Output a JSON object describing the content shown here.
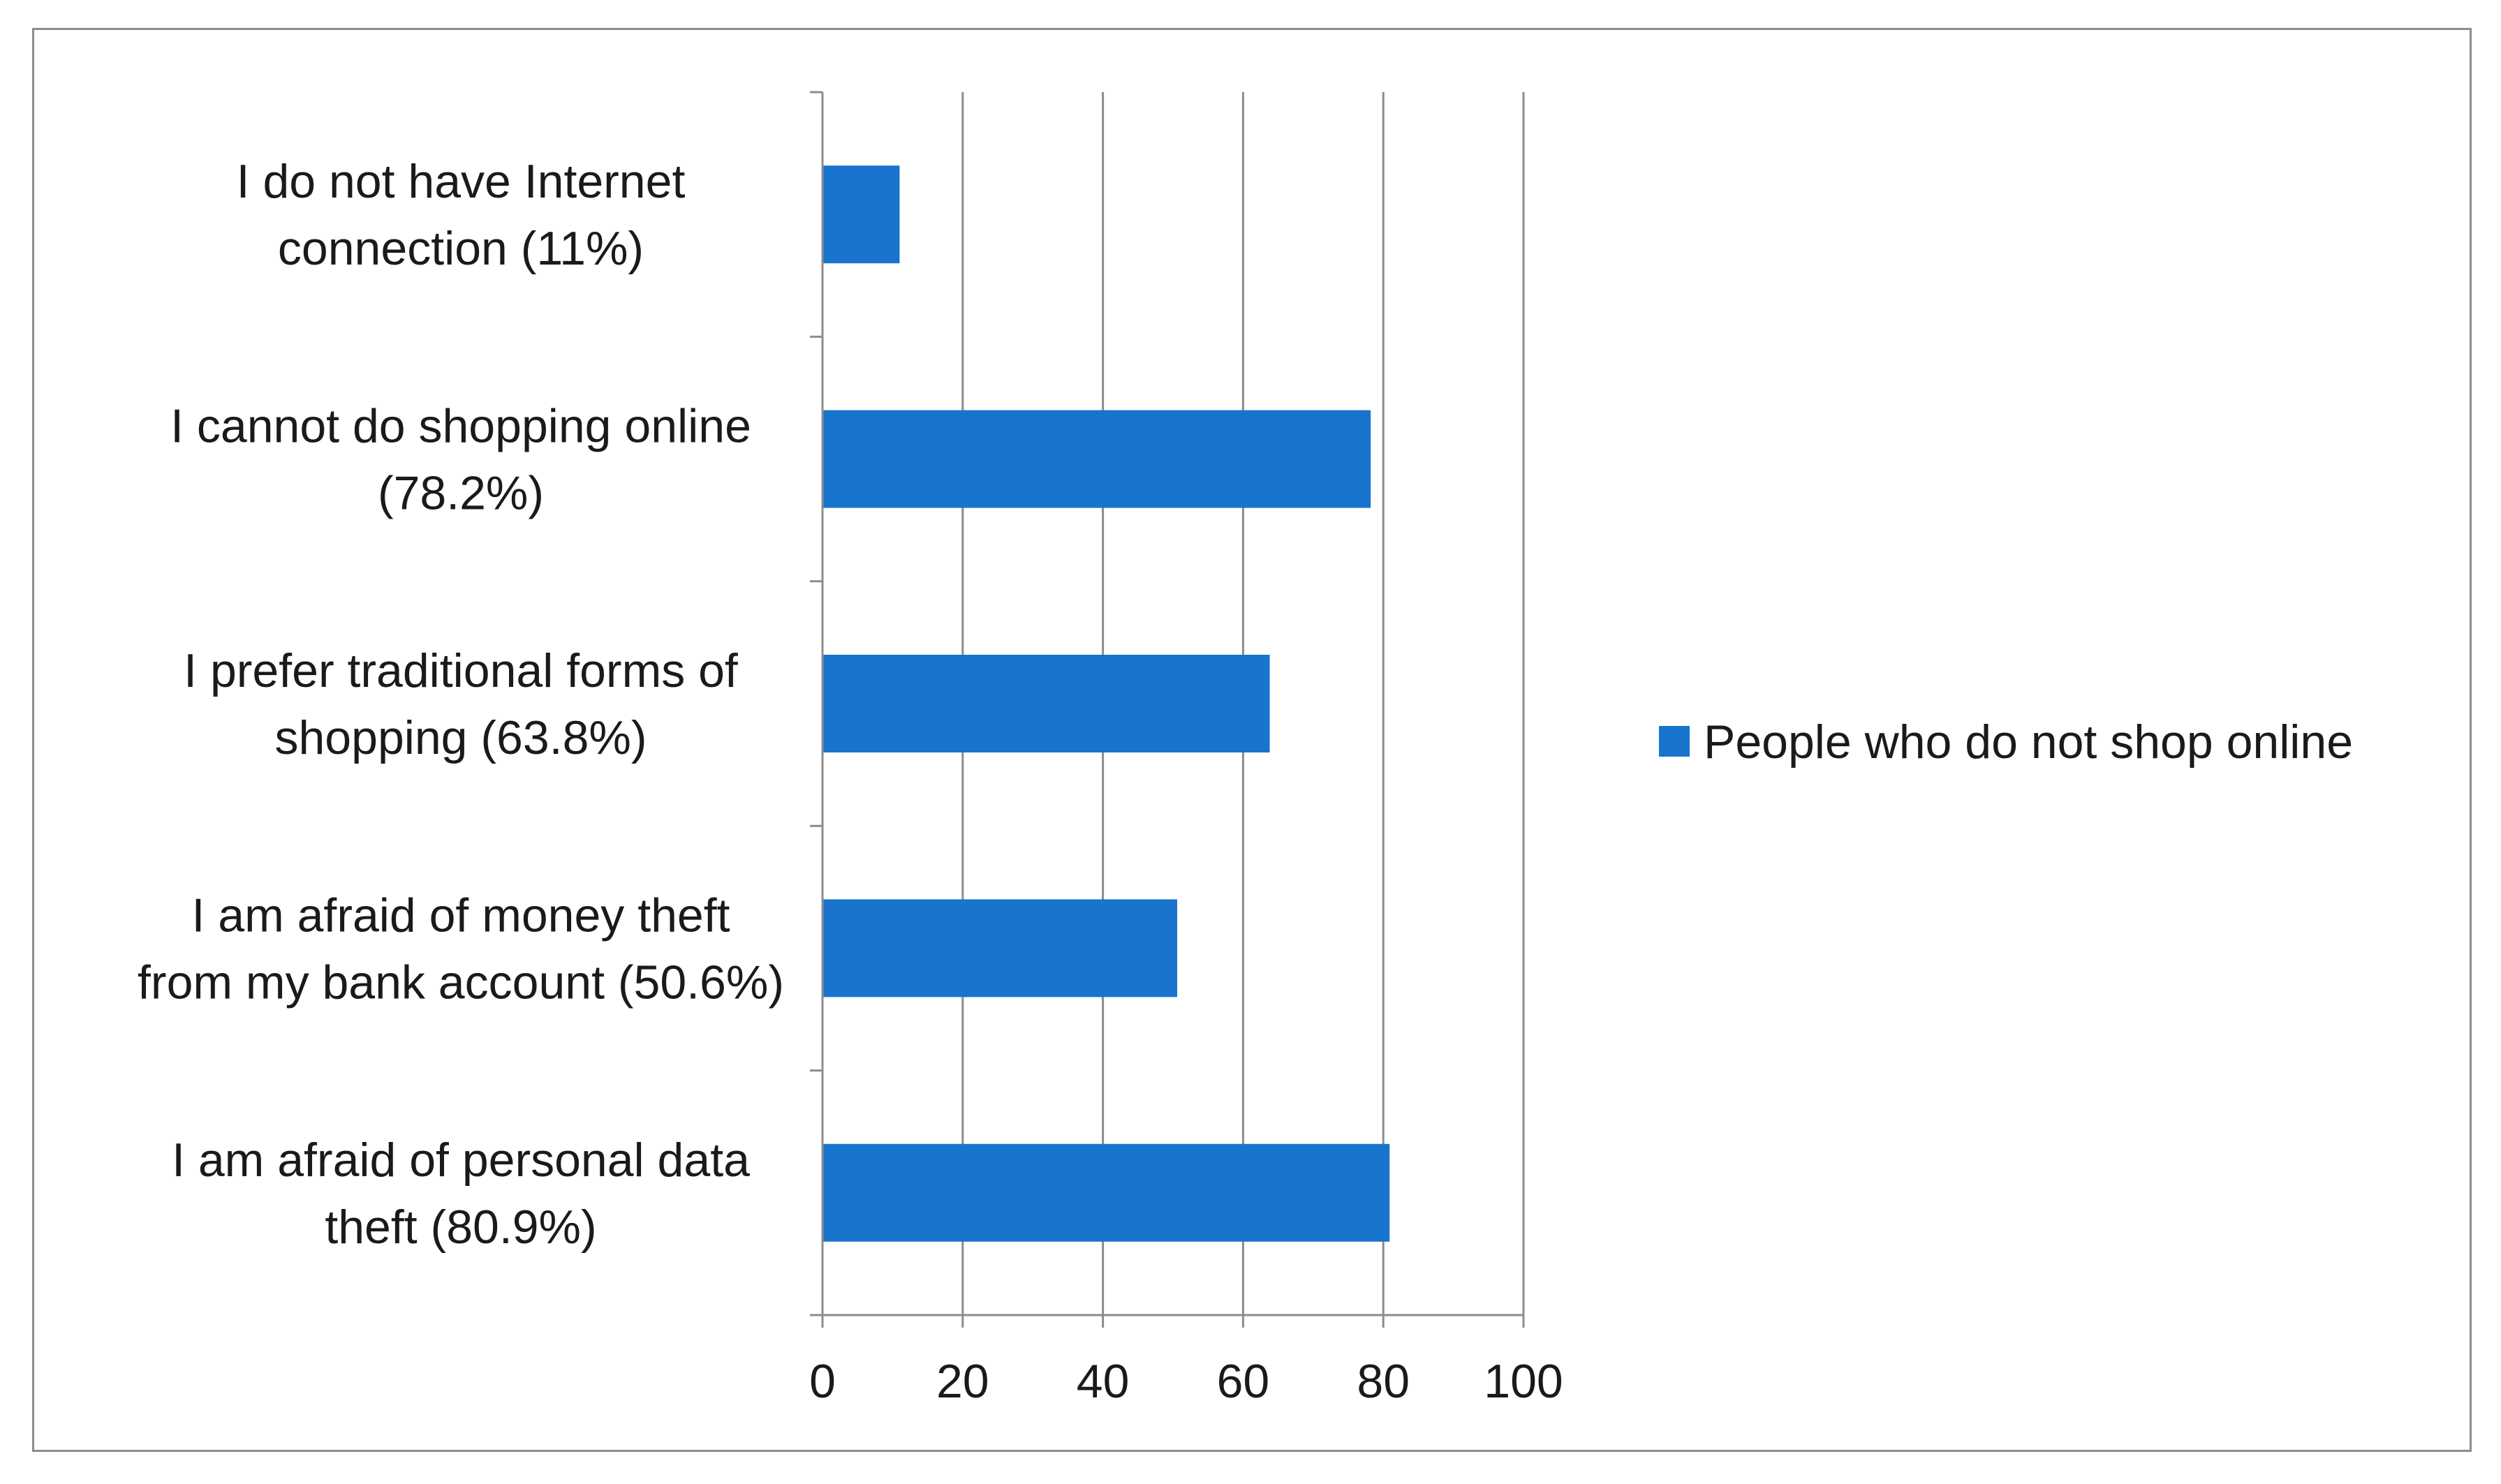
{
  "chart_data": {
    "type": "bar",
    "orientation": "horizontal",
    "categories": [
      [
        "I do not have Internet",
        "connection (11%)"
      ],
      [
        "I cannot do shopping online",
        "(78.2%)"
      ],
      [
        "I prefer traditional forms of",
        "shopping (63.8%)"
      ],
      [
        "I am afraid of money theft",
        "from my bank account (50.6%)"
      ],
      [
        "I am afraid of personal data",
        "theft (80.9%)"
      ]
    ],
    "series": [
      {
        "name": "People who do not shop online",
        "values": [
          11,
          78.2,
          63.8,
          50.6,
          80.9
        ],
        "color": "#1874cd"
      }
    ],
    "x_ticks": [
      "0",
      "20",
      "40",
      "60",
      "80",
      "100"
    ],
    "xlim": [
      0,
      100
    ],
    "grid": true,
    "legend_position": "right",
    "title": "",
    "xlabel": "",
    "ylabel": ""
  }
}
